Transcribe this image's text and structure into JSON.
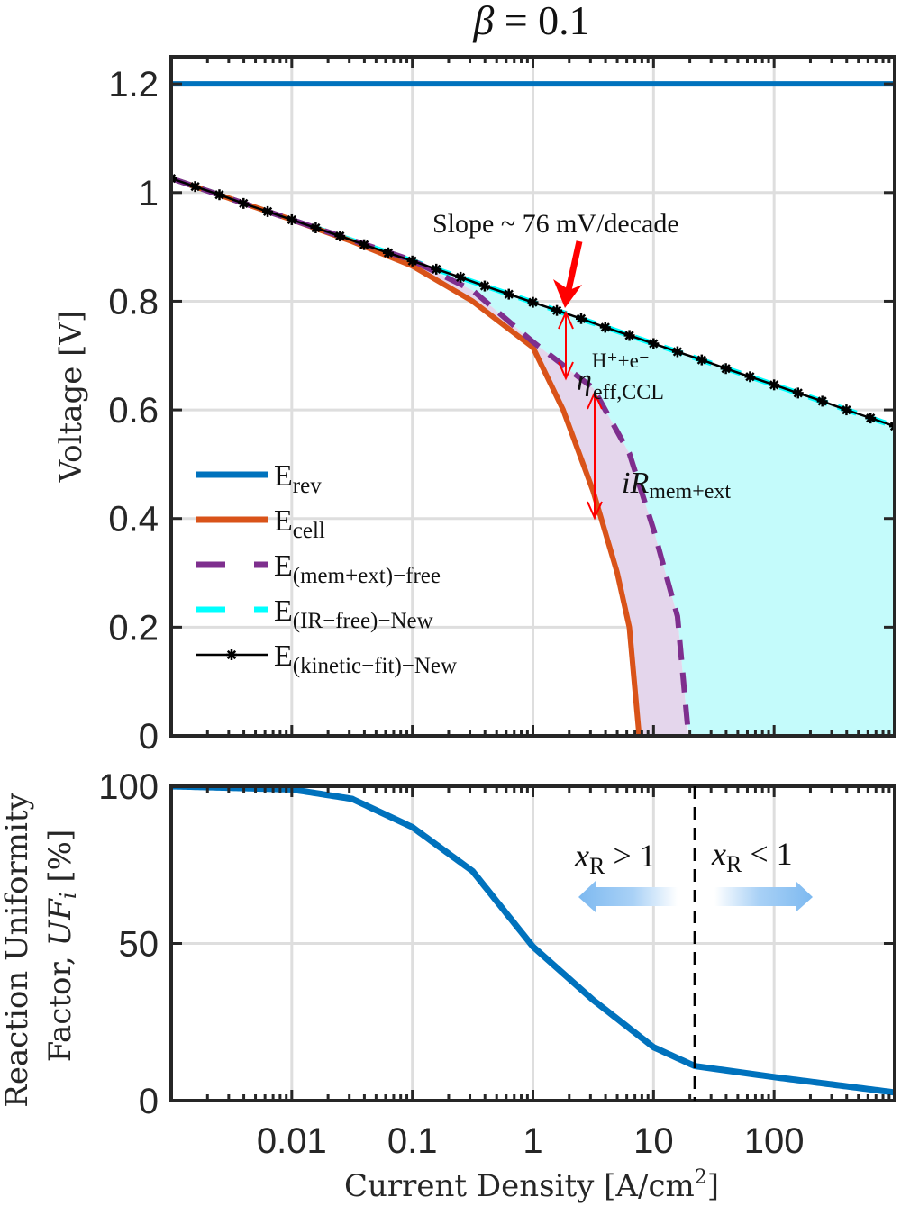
{
  "chart_data": [
    {
      "type": "line",
      "title": {
        "symbol": "β",
        "rest": " = 0.1"
      },
      "xlabel": "Current Density [A/cm²]",
      "xlabel_parts": {
        "main": "Current Density [A/cm",
        "sup": "2",
        "end": "]"
      },
      "ylabel": "Voltage [V]",
      "xscale": "log",
      "xlim": [
        0.001,
        1000
      ],
      "ylim": [
        0,
        1.25
      ],
      "grid": true,
      "xticks": [
        0.01,
        0.1,
        1,
        10,
        100
      ],
      "xtick_labels": [
        "0.01",
        "0.1",
        "1",
        "10",
        "100"
      ],
      "yticks": [
        0,
        0.2,
        0.4,
        0.6,
        0.8,
        1,
        1.2
      ],
      "ytick_labels": [
        "0",
        "0.2",
        "0.4",
        "0.6",
        "0.8",
        "1",
        "1.2"
      ],
      "legend_placement": "bottom-left",
      "series": [
        {
          "name": "E_rev",
          "label_main": "E",
          "label_sub": "rev",
          "color": "#0072BD",
          "style": "solid",
          "x": [
            0.001,
            1000
          ],
          "y": [
            1.2,
            1.2
          ]
        },
        {
          "name": "E_cell",
          "label_main": "E",
          "label_sub": "cell",
          "color": "#D95319",
          "style": "solid",
          "x": [
            0.001,
            0.01,
            0.0316,
            0.1,
            0.316,
            1,
            1.78,
            3.16,
            5.0,
            6.3,
            7.6
          ],
          "y": [
            1.026,
            0.95,
            0.91,
            0.865,
            0.8,
            0.715,
            0.6,
            0.45,
            0.3,
            0.2,
            0
          ]
        },
        {
          "name": "E_(mem+ext)-free",
          "label_main": "E",
          "label_sub": "(mem+ext)−free",
          "color": "#7E2F8E",
          "style": "dashed",
          "x": [
            0.001,
            0.01,
            0.1,
            0.316,
            1,
            3.16,
            6.3,
            10,
            15.8,
            19.5
          ],
          "y": [
            1.026,
            0.95,
            0.875,
            0.82,
            0.725,
            0.64,
            0.52,
            0.38,
            0.22,
            0
          ]
        },
        {
          "name": "E_(IR-free)-New",
          "label_main": "E",
          "label_sub": "(IR−free)−New",
          "color": "#00FFFF",
          "style": "dashed",
          "x": [
            0.001,
            1000
          ],
          "y": [
            1.026,
            0.57
          ]
        },
        {
          "name": "E_(kinetic-fit)-New",
          "label_main": "E",
          "label_sub": "(kinetic−fit)−New",
          "color": "#000000",
          "style": "solid-star",
          "x": [
            0.001,
            0.00158,
            0.00251,
            0.00398,
            0.00631,
            0.01,
            0.0158,
            0.0251,
            0.0398,
            0.0631,
            0.1,
            0.158,
            0.251,
            0.398,
            0.631,
            1,
            1.58,
            2.51,
            3.98,
            6.31,
            10,
            15.8,
            25.1,
            39.8,
            63.1,
            100,
            158,
            251,
            398,
            631,
            1000
          ],
          "y": [
            1.026,
            1.011,
            0.996,
            0.98,
            0.965,
            0.95,
            0.935,
            0.92,
            0.904,
            0.889,
            0.874,
            0.859,
            0.844,
            0.828,
            0.813,
            0.798,
            0.783,
            0.768,
            0.752,
            0.737,
            0.722,
            0.707,
            0.692,
            0.676,
            0.661,
            0.646,
            0.631,
            0.616,
            0.6,
            0.585,
            0.57
          ]
        }
      ],
      "fill_colors": {
        "kinetic_loss": "#C4FBFB",
        "ohmic_loss": "#E4D6EC"
      },
      "annotations": {
        "slope": "Slope ~ 76 mV/decade",
        "eta_main": "η",
        "eta_sup": "H⁺+e⁻",
        "eta_sub": "eff,CCL",
        "ir_main": "iR",
        "ir_sub": "mem+ext",
        "arrow_color": "#FF0000"
      }
    },
    {
      "type": "line",
      "xscale": "log",
      "xlim": [
        0.001,
        1000
      ],
      "ylim": [
        0,
        100
      ],
      "ylabel": "Reaction Uniformity Factor, UF_i [%]",
      "ylabel_parts": {
        "line1": "Reaction Uniformity",
        "line2_main": "Factor, ",
        "line2_var": "UF",
        "line2_sub": "i",
        "line2_end": " [%]"
      },
      "yticks": [
        0,
        50,
        100
      ],
      "ytick_labels": [
        "0",
        "50",
        "100"
      ],
      "grid": true,
      "series": [
        {
          "name": "UF_i",
          "color": "#0072BD",
          "x": [
            0.001,
            0.01,
            0.0316,
            0.1,
            0.316,
            1,
            3.16,
            10,
            22,
            100,
            1000
          ],
          "y": [
            100,
            99,
            96,
            87,
            73,
            49,
            32,
            17,
            11,
            7.5,
            2.6
          ]
        }
      ],
      "threshold_x": 22,
      "annotations": {
        "left": {
          "var": "x",
          "sub": "R",
          "rel": " > 1"
        },
        "right": {
          "var": "x",
          "sub": "R",
          "rel": " < 1"
        },
        "arrow_color": "#7DB9F0"
      }
    }
  ]
}
